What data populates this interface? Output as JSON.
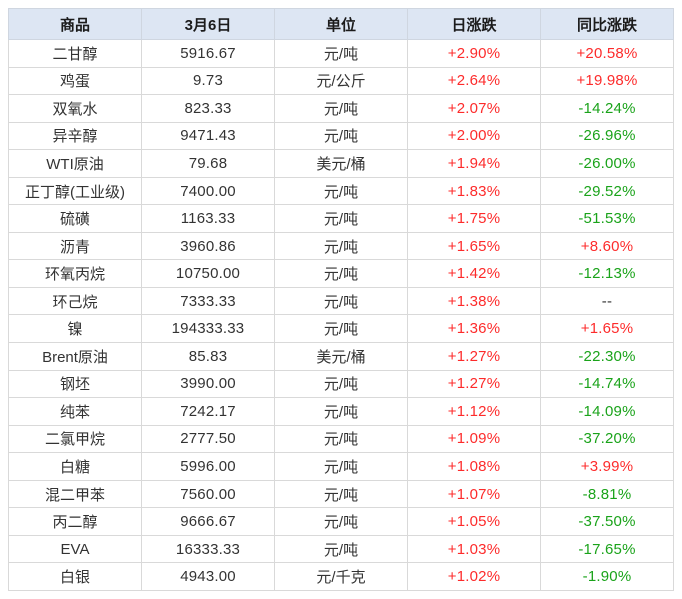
{
  "colors": {
    "up": "#fd2b2b",
    "down": "#1aa31a",
    "neutral": "#333333",
    "header_bg": "#dde6f3",
    "grid": "#d9d9d9",
    "outer_border": "#c6d1e0",
    "header_text": "#1b1b1b",
    "body_text": "#333333"
  },
  "chart_data": {
    "type": "table",
    "title": "",
    "columns": [
      "商品",
      "3月6日",
      "单位",
      "日涨跌",
      "同比涨跌"
    ],
    "rows": [
      {
        "name": "二甘醇",
        "price": "5916.67",
        "unit": "元/吨",
        "daily": "+2.90%",
        "daily_dir": "up",
        "yoy": "+20.58%",
        "yoy_dir": "up"
      },
      {
        "name": "鸡蛋",
        "price": "9.73",
        "unit": "元/公斤",
        "daily": "+2.64%",
        "daily_dir": "up",
        "yoy": "+19.98%",
        "yoy_dir": "up"
      },
      {
        "name": "双氧水",
        "price": "823.33",
        "unit": "元/吨",
        "daily": "+2.07%",
        "daily_dir": "up",
        "yoy": "-14.24%",
        "yoy_dir": "down"
      },
      {
        "name": "异辛醇",
        "price": "9471.43",
        "unit": "元/吨",
        "daily": "+2.00%",
        "daily_dir": "up",
        "yoy": "-26.96%",
        "yoy_dir": "down"
      },
      {
        "name": "WTI原油",
        "price": "79.68",
        "unit": "美元/桶",
        "daily": "+1.94%",
        "daily_dir": "up",
        "yoy": "-26.00%",
        "yoy_dir": "down"
      },
      {
        "name": "正丁醇(工业级)",
        "price": "7400.00",
        "unit": "元/吨",
        "daily": "+1.83%",
        "daily_dir": "up",
        "yoy": "-29.52%",
        "yoy_dir": "down"
      },
      {
        "name": "硫磺",
        "price": "1163.33",
        "unit": "元/吨",
        "daily": "+1.75%",
        "daily_dir": "up",
        "yoy": "-51.53%",
        "yoy_dir": "down"
      },
      {
        "name": "沥青",
        "price": "3960.86",
        "unit": "元/吨",
        "daily": "+1.65%",
        "daily_dir": "up",
        "yoy": "+8.60%",
        "yoy_dir": "up"
      },
      {
        "name": "环氧丙烷",
        "price": "10750.00",
        "unit": "元/吨",
        "daily": "+1.42%",
        "daily_dir": "up",
        "yoy": "-12.13%",
        "yoy_dir": "down"
      },
      {
        "name": "环己烷",
        "price": "7333.33",
        "unit": "元/吨",
        "daily": "+1.38%",
        "daily_dir": "up",
        "yoy": "--",
        "yoy_dir": "neutral"
      },
      {
        "name": "镍",
        "price": "194333.33",
        "unit": "元/吨",
        "daily": "+1.36%",
        "daily_dir": "up",
        "yoy": "+1.65%",
        "yoy_dir": "up"
      },
      {
        "name": "Brent原油",
        "price": "85.83",
        "unit": "美元/桶",
        "daily": "+1.27%",
        "daily_dir": "up",
        "yoy": "-22.30%",
        "yoy_dir": "down"
      },
      {
        "name": "钢坯",
        "price": "3990.00",
        "unit": "元/吨",
        "daily": "+1.27%",
        "daily_dir": "up",
        "yoy": "-14.74%",
        "yoy_dir": "down"
      },
      {
        "name": "纯苯",
        "price": "7242.17",
        "unit": "元/吨",
        "daily": "+1.12%",
        "daily_dir": "up",
        "yoy": "-14.09%",
        "yoy_dir": "down"
      },
      {
        "name": "二氯甲烷",
        "price": "2777.50",
        "unit": "元/吨",
        "daily": "+1.09%",
        "daily_dir": "up",
        "yoy": "-37.20%",
        "yoy_dir": "down"
      },
      {
        "name": "白糖",
        "price": "5996.00",
        "unit": "元/吨",
        "daily": "+1.08%",
        "daily_dir": "up",
        "yoy": "+3.99%",
        "yoy_dir": "up"
      },
      {
        "name": "混二甲苯",
        "price": "7560.00",
        "unit": "元/吨",
        "daily": "+1.07%",
        "daily_dir": "up",
        "yoy": "-8.81%",
        "yoy_dir": "down"
      },
      {
        "name": "丙二醇",
        "price": "9666.67",
        "unit": "元/吨",
        "daily": "+1.05%",
        "daily_dir": "up",
        "yoy": "-37.50%",
        "yoy_dir": "down"
      },
      {
        "name": "EVA",
        "price": "16333.33",
        "unit": "元/吨",
        "daily": "+1.03%",
        "daily_dir": "up",
        "yoy": "-17.65%",
        "yoy_dir": "down"
      },
      {
        "name": "白银",
        "price": "4943.00",
        "unit": "元/千克",
        "daily": "+1.02%",
        "daily_dir": "up",
        "yoy": "-1.90%",
        "yoy_dir": "down"
      }
    ]
  }
}
